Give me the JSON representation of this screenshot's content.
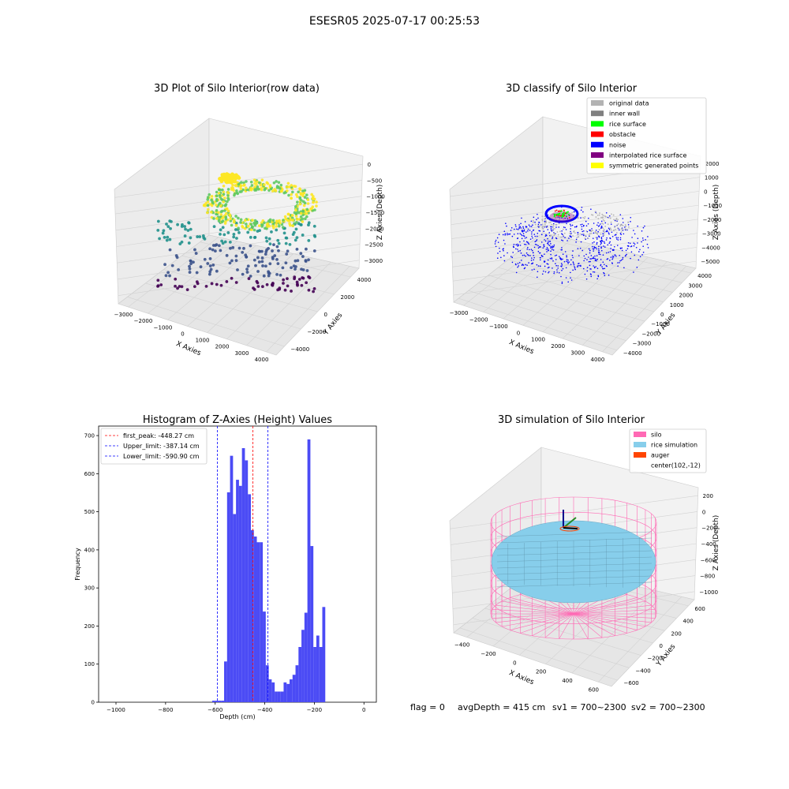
{
  "suptitle": "ESESR05 2025-07-17 00:25:53",
  "footer": {
    "flag": "flag = 0",
    "avg": "avgDepth = 415 cm",
    "sv1": "sv1 = 700~2300",
    "sv2": "sv2 = 700~2300"
  },
  "chart_data": [
    {
      "type": "scatter",
      "projection": "3d",
      "title": "3D Plot of Silo Interior(row data)",
      "xlabel": "X Axies",
      "ylabel": "Y Axies",
      "zlabel": "Z Axies (Depth)",
      "x_ticks": [
        "−3000",
        "−2000",
        "−1000",
        "0",
        "1000",
        "2000",
        "3000",
        "4000"
      ],
      "y_ticks": [
        "−4000",
        "−2000",
        "0",
        "2000",
        "4000"
      ],
      "z_ticks": [
        "−3000",
        "−2500",
        "−2000",
        "−1500",
        "−1000",
        "−500",
        "0"
      ],
      "xlim": [
        -3000,
        4500
      ],
      "ylim": [
        -4500,
        4500
      ],
      "zlim": [
        -3500,
        0
      ],
      "colormap": "viridis"
    },
    {
      "type": "scatter",
      "projection": "3d",
      "title": "3D classify of Silo Interior",
      "xlabel": "X Axies",
      "ylabel": "Y Axies",
      "zlabel": "Z Axies (Depth)",
      "x_ticks": [
        "−3000",
        "−2000",
        "−1000",
        "0",
        "1000",
        "2000",
        "3000",
        "4000"
      ],
      "y_ticks": [
        "−4000",
        "−3000",
        "−2000",
        "−1000",
        "0",
        "1000",
        "2000",
        "3000",
        "4000"
      ],
      "z_ticks": [
        "−5000",
        "−4000",
        "−3000",
        "−2000",
        "−1000",
        "0",
        "1000",
        "2000"
      ],
      "legend_position": "top-right",
      "legend": [
        {
          "label": "original data",
          "color": "#b3b3b3"
        },
        {
          "label": "inner wall",
          "color": "#808080"
        },
        {
          "label": "rice surface",
          "color": "#00ff00"
        },
        {
          "label": "obstacle",
          "color": "#ff0000"
        },
        {
          "label": "noise",
          "color": "#0000ff"
        },
        {
          "label": "interpolated rice surface",
          "color": "#800080"
        },
        {
          "label": "symmetric generated points",
          "color": "#ffff00"
        }
      ]
    },
    {
      "type": "bar",
      "title": "Histogram of Z-Axies (Height) Values",
      "xlabel": "Depth (cm)",
      "ylabel": "Frequency",
      "xlim": [
        -1070,
        50
      ],
      "ylim": [
        0,
        725
      ],
      "x_ticks": [
        -1000,
        -800,
        -600,
        -400,
        -200,
        0
      ],
      "y_ticks": [
        0,
        100,
        200,
        300,
        400,
        500,
        600,
        700
      ],
      "bar_color": "#4b4bf5",
      "bin_width": 12,
      "bins": [
        {
          "x": -612,
          "value": 4
        },
        {
          "x": -600,
          "value": 4
        },
        {
          "x": -588,
          "value": 4
        },
        {
          "x": -576,
          "value": 4
        },
        {
          "x": -564,
          "value": 107
        },
        {
          "x": -552,
          "value": 551
        },
        {
          "x": -540,
          "value": 647
        },
        {
          "x": -528,
          "value": 494
        },
        {
          "x": -516,
          "value": 584
        },
        {
          "x": -504,
          "value": 568
        },
        {
          "x": -492,
          "value": 667
        },
        {
          "x": -480,
          "value": 635
        },
        {
          "x": -468,
          "value": 546
        },
        {
          "x": -456,
          "value": 452
        },
        {
          "x": -444,
          "value": 435
        },
        {
          "x": -432,
          "value": 420
        },
        {
          "x": -420,
          "value": 420
        },
        {
          "x": -408,
          "value": 238
        },
        {
          "x": -396,
          "value": 97
        },
        {
          "x": -384,
          "value": 60
        },
        {
          "x": -372,
          "value": 52
        },
        {
          "x": -360,
          "value": 28
        },
        {
          "x": -348,
          "value": 28
        },
        {
          "x": -336,
          "value": 28
        },
        {
          "x": -324,
          "value": 52
        },
        {
          "x": -312,
          "value": 48
        },
        {
          "x": -300,
          "value": 60
        },
        {
          "x": -288,
          "value": 72
        },
        {
          "x": -276,
          "value": 97
        },
        {
          "x": -264,
          "value": 145
        },
        {
          "x": -252,
          "value": 190
        },
        {
          "x": -240,
          "value": 235
        },
        {
          "x": -228,
          "value": 690
        },
        {
          "x": -216,
          "value": 410
        },
        {
          "x": -204,
          "value": 145
        },
        {
          "x": -192,
          "value": 175
        },
        {
          "x": -180,
          "value": 145
        },
        {
          "x": -168,
          "value": 250
        }
      ],
      "vlines": [
        {
          "x": -448.27,
          "label": "first_peak: -448.27 cm",
          "color": "#ff0000"
        },
        {
          "x": -387.14,
          "label": "Upper_limit: -387.14 cm",
          "color": "#0000ff"
        },
        {
          "x": -590.9,
          "label": "Lower_limit: -590.90 cm",
          "color": "#0000ff"
        }
      ],
      "legend_position": "top-left"
    },
    {
      "type": "surface",
      "projection": "3d",
      "title": "3D simulation of Silo Interior",
      "xlabel": "X Axies",
      "ylabel": "Y Axies",
      "zlabel": "Z Axies (Depth)",
      "x_ticks": [
        "−400",
        "−200",
        "0",
        "200",
        "400",
        "600"
      ],
      "y_ticks": [
        "−600",
        "−400",
        "−200",
        "0",
        "200",
        "400",
        "600"
      ],
      "z_ticks": [
        "−1000",
        "−800",
        "−600",
        "−400",
        "−200",
        "0",
        "200"
      ],
      "legend_position": "top-right",
      "legend": [
        {
          "label": "silo",
          "color": "#ff69b4"
        },
        {
          "label": "rice simulation",
          "color": "#87ceeb"
        },
        {
          "label": "auger",
          "color": "#ff4500"
        },
        {
          "label": "center(102,-12)",
          "color": ""
        }
      ]
    }
  ]
}
